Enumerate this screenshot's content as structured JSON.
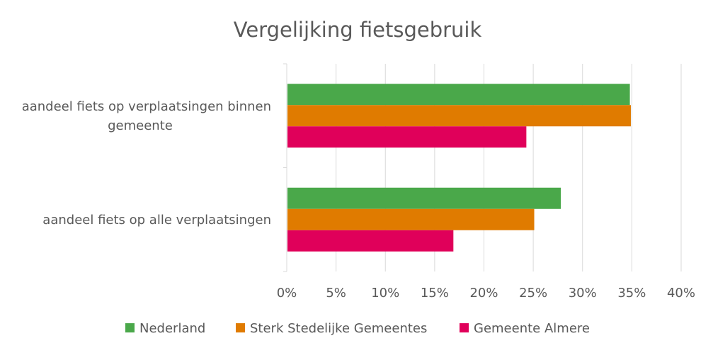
{
  "chart_data": {
    "type": "bar",
    "orientation": "horizontal",
    "title": "Vergelijking fietsgebruik",
    "categories": [
      [
        "aandeel fiets op verplaatsingen binnen",
        "gemeente"
      ],
      [
        "aandeel fiets op alle verplaatsingen"
      ]
    ],
    "series": [
      {
        "name": "Nederland",
        "color": "#4aa84a",
        "values": [
          34.8,
          27.8
        ]
      },
      {
        "name": "Sterk Stedelijke Gemeentes",
        "color": "#e07b00",
        "values": [
          34.9,
          25.1
        ]
      },
      {
        "name": "Gemeente Almere",
        "color": "#e0005a",
        "values": [
          24.3,
          16.9
        ]
      }
    ],
    "xlim": [
      0,
      40
    ],
    "xticks": [
      "0%",
      "5%",
      "10%",
      "15%",
      "20%",
      "25%",
      "30%",
      "35%",
      "40%"
    ],
    "grid": true,
    "legend_position": "bottom"
  }
}
